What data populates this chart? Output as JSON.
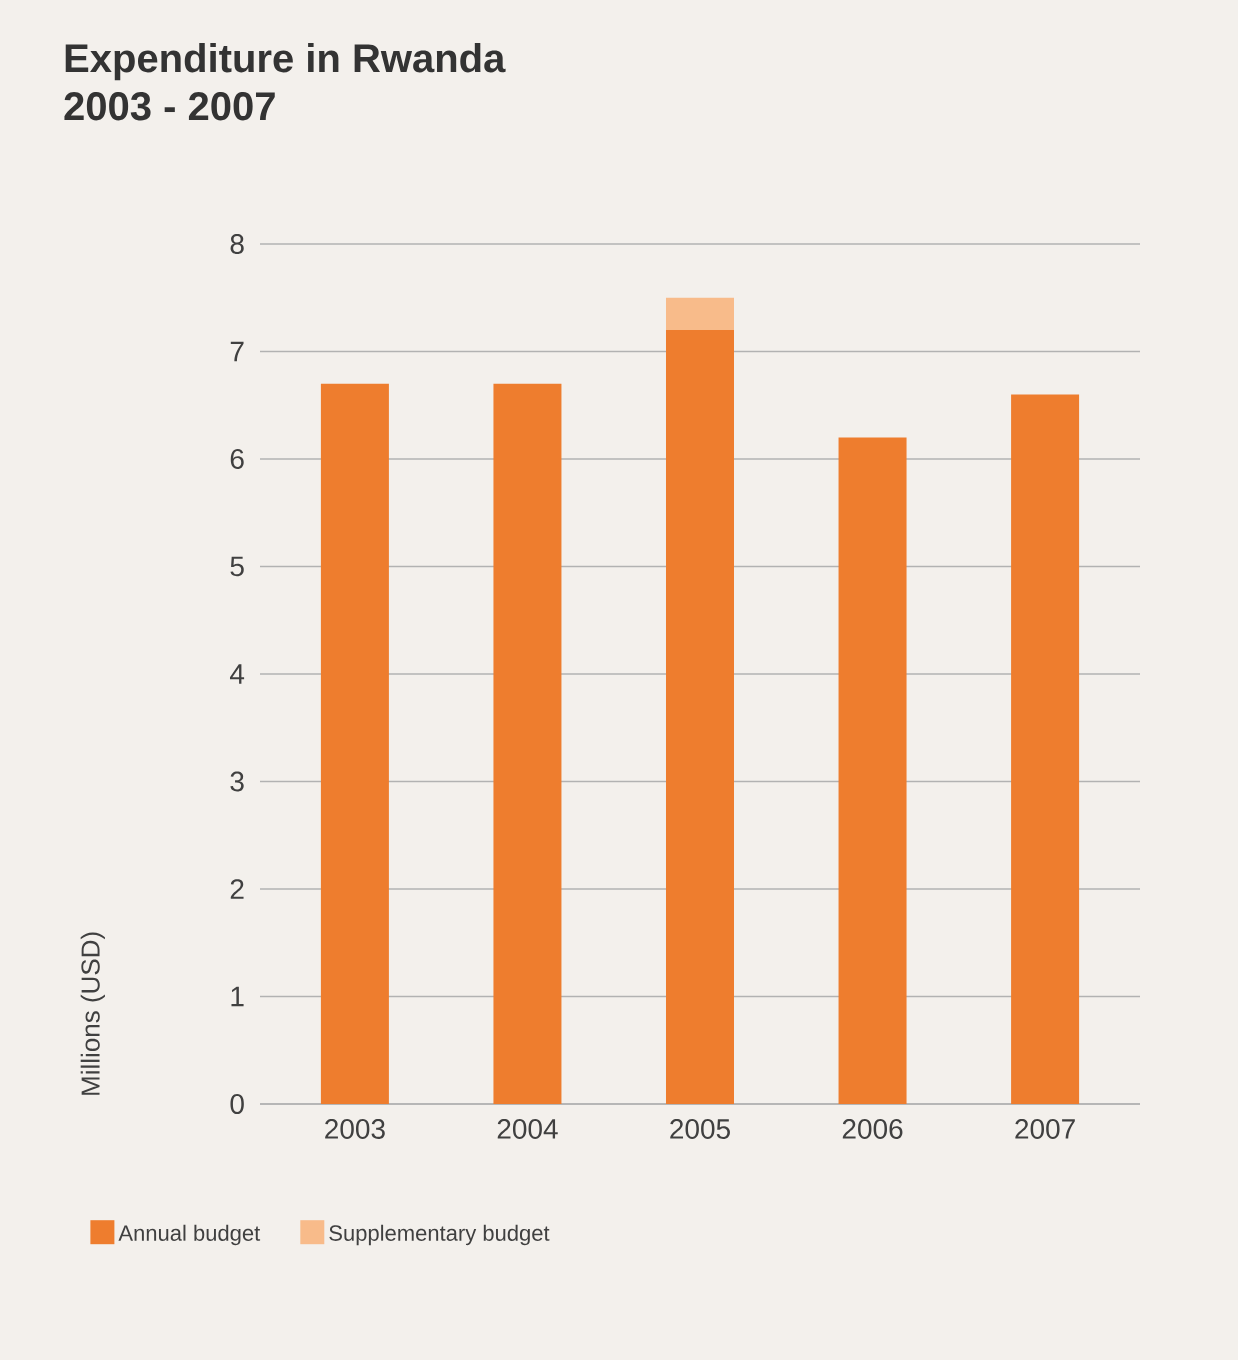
{
  "chart_data": {
    "type": "bar",
    "title": "Expenditure in Rwanda\n2003 - 2007",
    "ylabel": "Millions (USD)",
    "categories": [
      "2003",
      "2004",
      "2005",
      "2006",
      "2007"
    ],
    "series": [
      {
        "name": "Annual budget",
        "color": "#ee7d2e",
        "values": [
          6.7,
          6.7,
          7.2,
          6.2,
          6.6
        ]
      },
      {
        "name": "Supplementary budget",
        "color": "#f8bb8a",
        "values": [
          0,
          0,
          0.3,
          0,
          0
        ]
      }
    ],
    "stacked": true,
    "ylim": [
      0,
      8
    ],
    "yticks": [
      0,
      1,
      2,
      3,
      4,
      5,
      6,
      7,
      8
    ],
    "grid": "y",
    "legend": "bottom"
  }
}
